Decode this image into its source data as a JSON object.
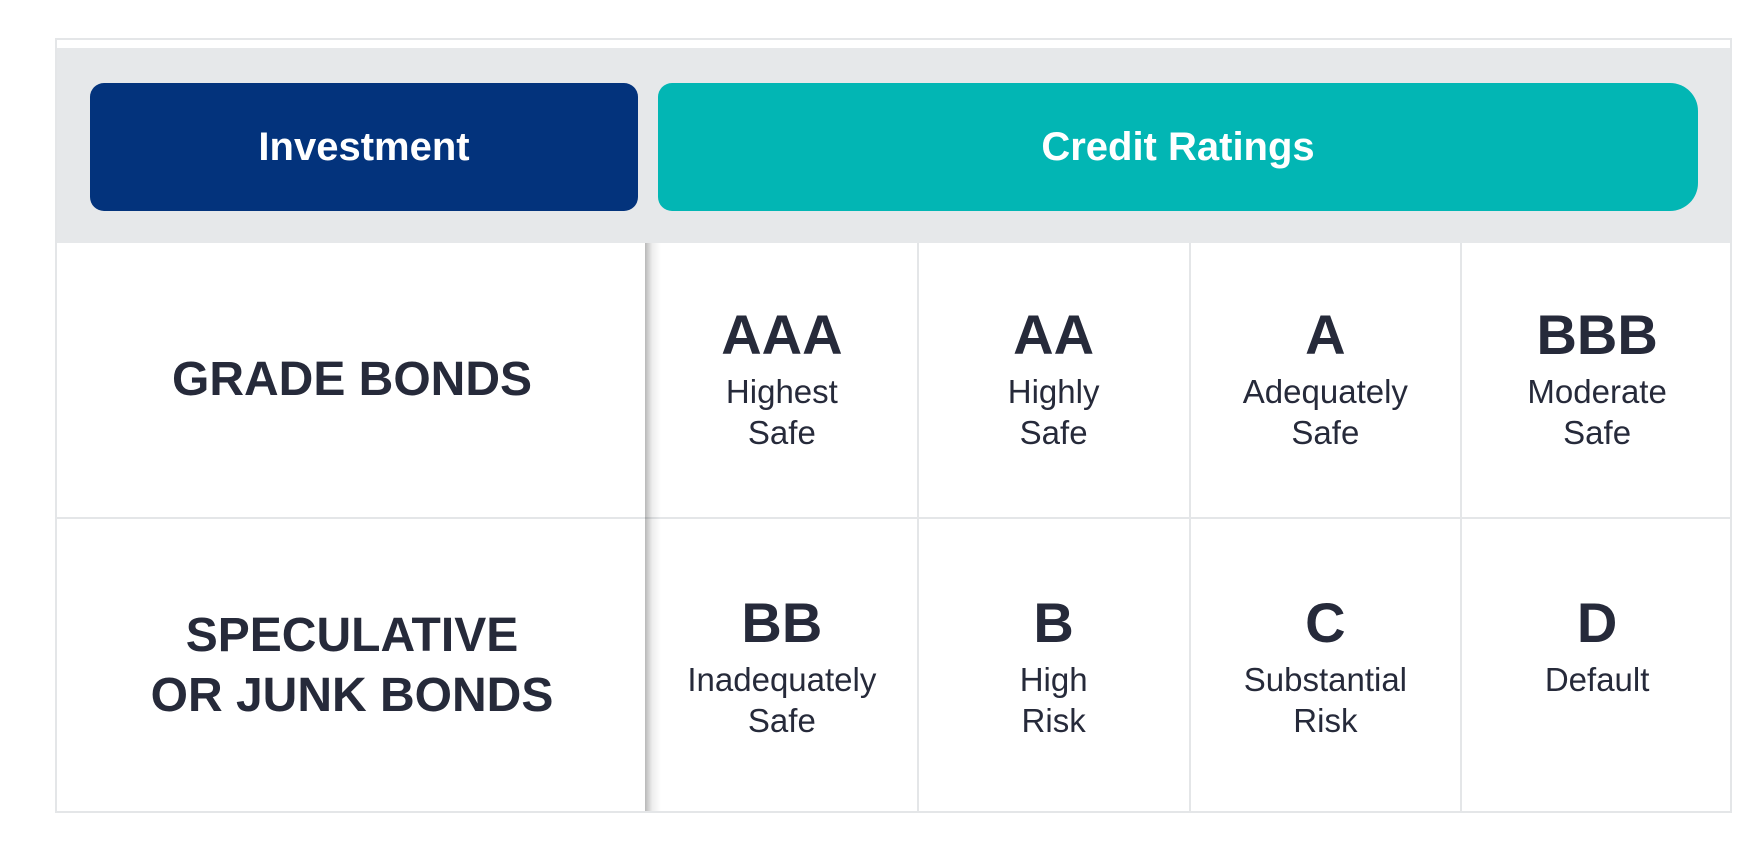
{
  "header": {
    "left": "Investment",
    "right": "Credit Ratings"
  },
  "rows": [
    {
      "label": "GRADE BONDS",
      "ratings": [
        {
          "grade": "AAA",
          "desc": "Highest\nSafe"
        },
        {
          "grade": "AA",
          "desc": "Highly\nSafe"
        },
        {
          "grade": "A",
          "desc": "Adequately\nSafe"
        },
        {
          "grade": "BBB",
          "desc": "Moderate\nSafe"
        }
      ]
    },
    {
      "label": "SPECULATIVE\nOR JUNK BONDS",
      "ratings": [
        {
          "grade": "BB",
          "desc": "Inadequately\nSafe"
        },
        {
          "grade": "B",
          "desc": "High\nRisk"
        },
        {
          "grade": "C",
          "desc": "Substantial\nRisk"
        },
        {
          "grade": "D",
          "desc": "Default"
        }
      ]
    }
  ],
  "colors": {
    "investment_pill": "#03337c",
    "credit_pill": "#02b6b4",
    "header_band": "#e6e8ea",
    "text": "#262a3a",
    "grid_lines": "#e4e6e8"
  }
}
